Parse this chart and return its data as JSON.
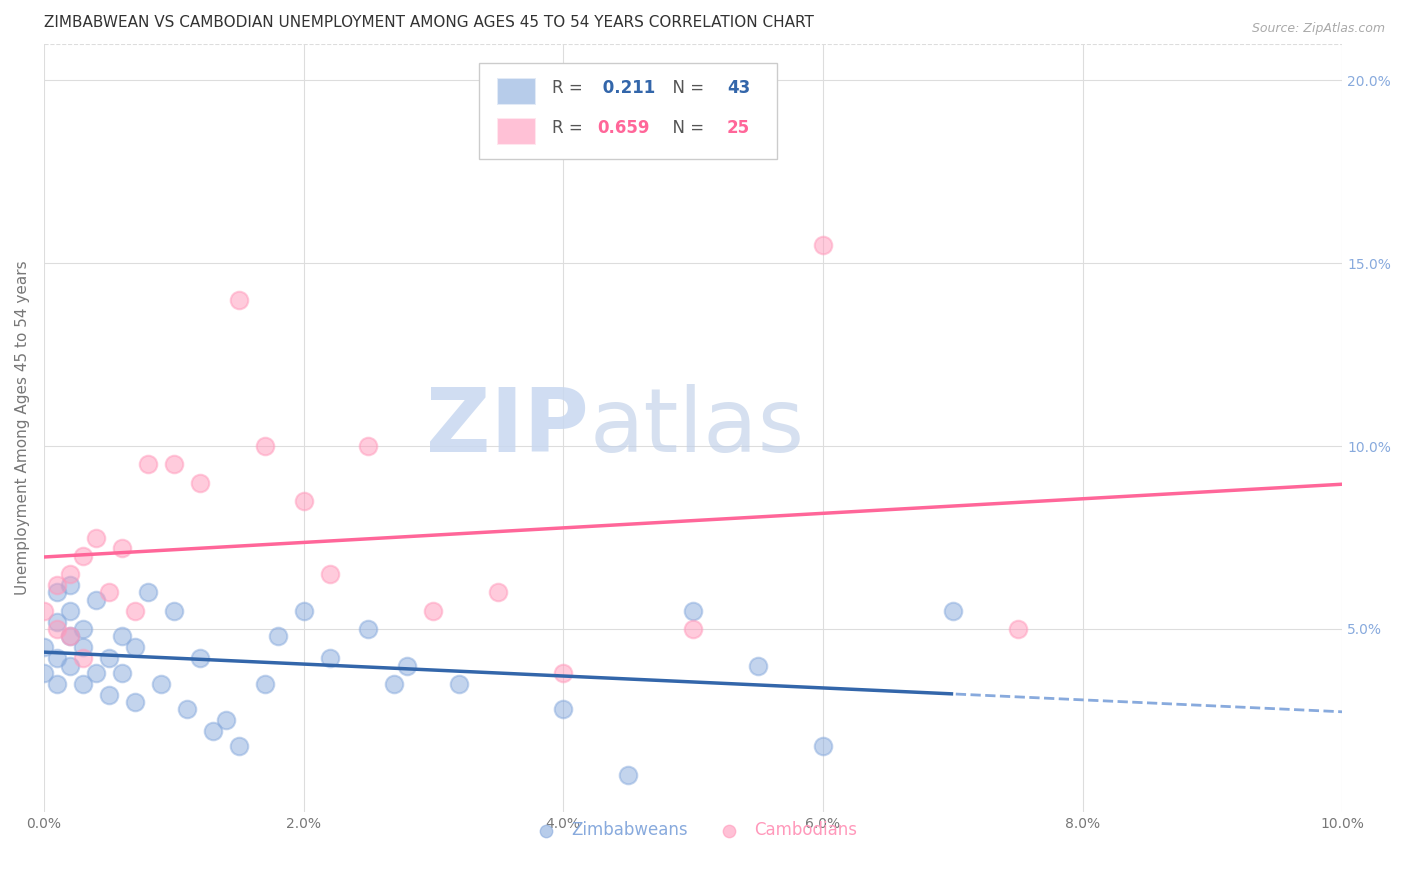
{
  "title": "ZIMBABWEAN VS CAMBODIAN UNEMPLOYMENT AMONG AGES 45 TO 54 YEARS CORRELATION CHART",
  "source": "Source: ZipAtlas.com",
  "ylabel": "Unemployment Among Ages 45 to 54 years",
  "xlim": [
    0,
    0.1
  ],
  "ylim": [
    0,
    0.21
  ],
  "zimbabwean_x": [
    0.0,
    0.0,
    0.001,
    0.001,
    0.001,
    0.001,
    0.002,
    0.002,
    0.002,
    0.002,
    0.003,
    0.003,
    0.003,
    0.004,
    0.004,
    0.005,
    0.005,
    0.006,
    0.006,
    0.007,
    0.007,
    0.008,
    0.009,
    0.01,
    0.011,
    0.012,
    0.013,
    0.014,
    0.015,
    0.017,
    0.018,
    0.02,
    0.022,
    0.025,
    0.027,
    0.028,
    0.032,
    0.04,
    0.045,
    0.05,
    0.055,
    0.06,
    0.07
  ],
  "zimbabwean_y": [
    0.045,
    0.038,
    0.052,
    0.06,
    0.035,
    0.042,
    0.055,
    0.048,
    0.062,
    0.04,
    0.05,
    0.035,
    0.045,
    0.038,
    0.058,
    0.032,
    0.042,
    0.048,
    0.038,
    0.045,
    0.03,
    0.06,
    0.035,
    0.055,
    0.028,
    0.042,
    0.022,
    0.025,
    0.018,
    0.035,
    0.048,
    0.055,
    0.042,
    0.05,
    0.035,
    0.04,
    0.035,
    0.028,
    0.01,
    0.055,
    0.04,
    0.018,
    0.055
  ],
  "cambodian_x": [
    0.0,
    0.001,
    0.001,
    0.002,
    0.002,
    0.003,
    0.003,
    0.004,
    0.005,
    0.006,
    0.007,
    0.008,
    0.01,
    0.012,
    0.015,
    0.017,
    0.02,
    0.022,
    0.025,
    0.03,
    0.035,
    0.04,
    0.05,
    0.06,
    0.075
  ],
  "cambodian_y": [
    0.055,
    0.05,
    0.062,
    0.048,
    0.065,
    0.042,
    0.07,
    0.075,
    0.06,
    0.072,
    0.055,
    0.095,
    0.095,
    0.09,
    0.14,
    0.1,
    0.085,
    0.065,
    0.1,
    0.055,
    0.06,
    0.038,
    0.05,
    0.155,
    0.05
  ],
  "zim_color": "#88AADD",
  "cam_color": "#FF99BB",
  "zim_line_color": "#3366AA",
  "cam_line_color": "#FF6699",
  "zim_R": 0.211,
  "zim_N": 43,
  "cam_R": 0.659,
  "cam_N": 25,
  "watermark_zip": "ZIP",
  "watermark_atlas": "atlas",
  "ytick_labels_right": [
    "5.0%",
    "10.0%",
    "15.0%",
    "20.0%"
  ],
  "ytick_positions_right": [
    0.05,
    0.1,
    0.15,
    0.2
  ],
  "xtick_labels": [
    "0.0%",
    "2.0%",
    "4.0%",
    "6.0%",
    "8.0%",
    "10.0%"
  ],
  "xtick_positions": [
    0.0,
    0.02,
    0.04,
    0.06,
    0.08,
    0.1
  ],
  "background_color": "#FFFFFF",
  "grid_color": "#DDDDDD",
  "title_fontsize": 11,
  "axis_label_fontsize": 11,
  "tick_fontsize": 10,
  "legend_fontsize": 12
}
